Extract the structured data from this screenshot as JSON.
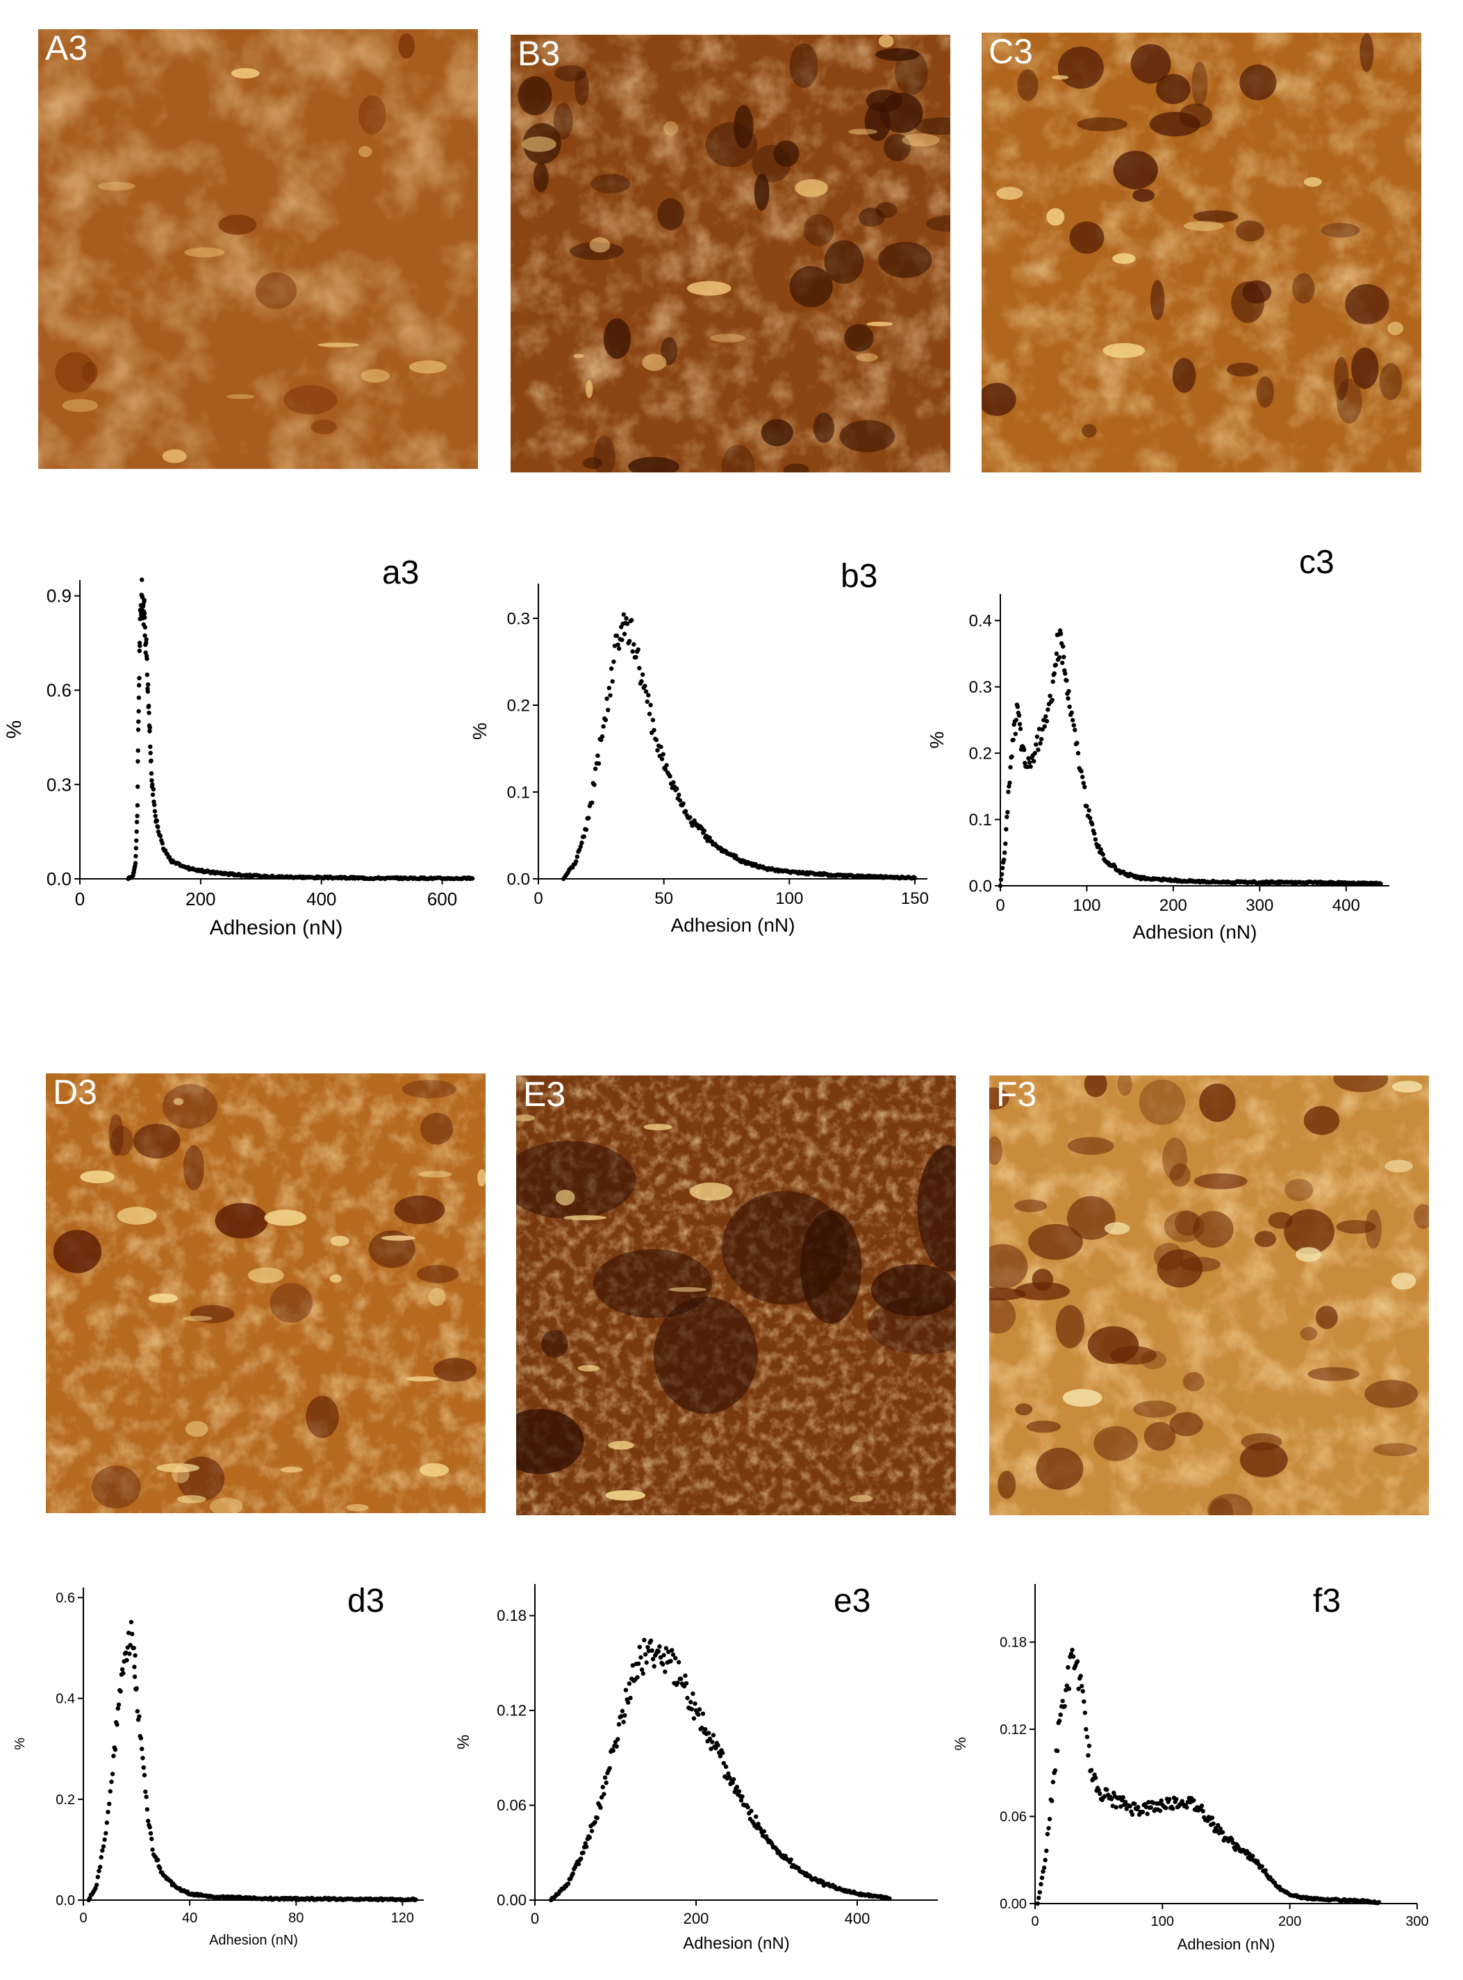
{
  "figure": {
    "afm_panels": [
      {
        "label": "A3",
        "palette": [
          "#7a2f06",
          "#a75d1f",
          "#f0c67a"
        ],
        "features": "layered streaks with bright ridges"
      },
      {
        "label": "B3",
        "palette": [
          "#3a1402",
          "#8b4512",
          "#f2c77c"
        ],
        "features": "granular with dark pits"
      },
      {
        "label": "C3",
        "palette": [
          "#4a1704",
          "#b0661d",
          "#f4d48a"
        ],
        "features": "dark holes on bright matrix"
      },
      {
        "label": "D3",
        "palette": [
          "#5a1a04",
          "#b56a20",
          "#f6d890"
        ],
        "features": "bright speckled fibrous texture"
      },
      {
        "label": "E3",
        "palette": [
          "#2c0c02",
          "#7a3a10",
          "#f7d98c"
        ],
        "features": "noisy speckle with bright bands"
      },
      {
        "label": "F3",
        "palette": [
          "#6a2606",
          "#c98b3c",
          "#f3e0a6"
        ],
        "features": "dark round islands on bright matrix"
      }
    ]
  },
  "chart_data": [
    {
      "panel": "a3",
      "type": "scatter",
      "xlabel": "Adhesion (nN)",
      "ylabel": "%",
      "xlim": [
        0,
        650
      ],
      "ylim": [
        0,
        0.95
      ],
      "xticks": [
        0,
        200,
        400,
        600
      ],
      "xtick_labels": [
        "0",
        "200",
        "400",
        "600"
      ],
      "yticks": [
        0,
        0.3,
        0.6,
        0.9
      ],
      "ytick_labels": [
        "0.0",
        "0.3",
        "0.6",
        "0.9"
      ],
      "points": [
        [
          80,
          0.0
        ],
        [
          88,
          0.01
        ],
        [
          92,
          0.05
        ],
        [
          95,
          0.2
        ],
        [
          97,
          0.5
        ],
        [
          99,
          0.75
        ],
        [
          101,
          0.87
        ],
        [
          103,
          0.9
        ],
        [
          106,
          0.85
        ],
        [
          108,
          0.8
        ],
        [
          111,
          0.7
        ],
        [
          114,
          0.55
        ],
        [
          117,
          0.4
        ],
        [
          120,
          0.3
        ],
        [
          125,
          0.2
        ],
        [
          130,
          0.15
        ],
        [
          140,
          0.09
        ],
        [
          150,
          0.06
        ],
        [
          170,
          0.04
        ],
        [
          200,
          0.025
        ],
        [
          250,
          0.015
        ],
        [
          300,
          0.008
        ],
        [
          400,
          0.004
        ],
        [
          500,
          0.002
        ],
        [
          650,
          0.001
        ]
      ]
    },
    {
      "panel": "b3",
      "type": "scatter",
      "xlabel": "Adhesion (nN)",
      "ylabel": "%",
      "xlim": [
        0,
        155
      ],
      "ylim": [
        0,
        0.34
      ],
      "xticks": [
        0,
        50,
        100,
        150
      ],
      "xtick_labels": [
        "0",
        "50",
        "100",
        "150"
      ],
      "yticks": [
        0,
        0.1,
        0.2,
        0.3
      ],
      "ytick_labels": [
        "0.0",
        "0.1",
        "0.2",
        "0.3"
      ],
      "points": [
        [
          10,
          0.0
        ],
        [
          15,
          0.02
        ],
        [
          20,
          0.07
        ],
        [
          25,
          0.16
        ],
        [
          30,
          0.25
        ],
        [
          33,
          0.29
        ],
        [
          35,
          0.3
        ],
        [
          38,
          0.27
        ],
        [
          42,
          0.22
        ],
        [
          47,
          0.16
        ],
        [
          52,
          0.12
        ],
        [
          60,
          0.07
        ],
        [
          70,
          0.04
        ],
        [
          80,
          0.022
        ],
        [
          90,
          0.012
        ],
        [
          100,
          0.008
        ],
        [
          120,
          0.004
        ],
        [
          140,
          0.002
        ],
        [
          150,
          0.001
        ]
      ]
    },
    {
      "panel": "c3",
      "type": "scatter",
      "xlabel": "Adhesion (nN)",
      "ylabel": "%",
      "xlim": [
        0,
        450
      ],
      "ylim": [
        0,
        0.44
      ],
      "xticks": [
        0,
        100,
        200,
        300,
        400
      ],
      "xtick_labels": [
        "0",
        "100",
        "200",
        "300",
        "400"
      ],
      "yticks": [
        0,
        0.1,
        0.2,
        0.3,
        0.4
      ],
      "ytick_labels": [
        "0.0",
        "0.1",
        "0.2",
        "0.3",
        "0.4"
      ],
      "points": [
        [
          0,
          0.0
        ],
        [
          5,
          0.05
        ],
        [
          10,
          0.15
        ],
        [
          15,
          0.22
        ],
        [
          20,
          0.27
        ],
        [
          25,
          0.21
        ],
        [
          30,
          0.18
        ],
        [
          40,
          0.2
        ],
        [
          50,
          0.25
        ],
        [
          60,
          0.28
        ],
        [
          65,
          0.35
        ],
        [
          70,
          0.38
        ],
        [
          75,
          0.32
        ],
        [
          80,
          0.27
        ],
        [
          90,
          0.2
        ],
        [
          100,
          0.12
        ],
        [
          110,
          0.07
        ],
        [
          120,
          0.04
        ],
        [
          140,
          0.02
        ],
        [
          160,
          0.012
        ],
        [
          200,
          0.008
        ],
        [
          250,
          0.006
        ],
        [
          300,
          0.005
        ],
        [
          350,
          0.005
        ],
        [
          400,
          0.004
        ],
        [
          440,
          0.003
        ]
      ]
    },
    {
      "panel": "d3",
      "type": "scatter",
      "xlabel": "Adhesion (nN)",
      "ylabel": "%",
      "xlim": [
        0,
        128
      ],
      "ylim": [
        0,
        0.62
      ],
      "xticks": [
        0,
        40,
        80,
        120
      ],
      "xtick_labels": [
        "0",
        "40",
        "80",
        "120"
      ],
      "yticks": [
        0,
        0.2,
        0.4,
        0.6
      ],
      "ytick_labels": [
        "0.0",
        "0.2",
        "0.4",
        "0.6"
      ],
      "points": [
        [
          2,
          0.0
        ],
        [
          5,
          0.03
        ],
        [
          8,
          0.12
        ],
        [
          11,
          0.25
        ],
        [
          13,
          0.38
        ],
        [
          15,
          0.45
        ],
        [
          17,
          0.53
        ],
        [
          19,
          0.5
        ],
        [
          20,
          0.42
        ],
        [
          22,
          0.3
        ],
        [
          24,
          0.18
        ],
        [
          26,
          0.1
        ],
        [
          30,
          0.05
        ],
        [
          35,
          0.025
        ],
        [
          40,
          0.012
        ],
        [
          50,
          0.006
        ],
        [
          70,
          0.003
        ],
        [
          100,
          0.002
        ],
        [
          125,
          0.001
        ]
      ]
    },
    {
      "panel": "e3",
      "type": "scatter",
      "xlabel": "Adhesion (nN)",
      "ylabel": "%",
      "xlim": [
        0,
        500
      ],
      "ylim": [
        0,
        0.2
      ],
      "xticks": [
        0,
        200,
        400
      ],
      "xtick_labels": [
        "0",
        "200",
        "400"
      ],
      "yticks": [
        0,
        0.06,
        0.12,
        0.18
      ],
      "ytick_labels": [
        "0.00",
        "0.06",
        "0.12",
        "0.18"
      ],
      "points": [
        [
          20,
          0.0
        ],
        [
          40,
          0.01
        ],
        [
          60,
          0.03
        ],
        [
          80,
          0.06
        ],
        [
          100,
          0.1
        ],
        [
          120,
          0.14
        ],
        [
          140,
          0.16
        ],
        [
          160,
          0.155
        ],
        [
          180,
          0.14
        ],
        [
          200,
          0.12
        ],
        [
          220,
          0.1
        ],
        [
          240,
          0.08
        ],
        [
          260,
          0.06
        ],
        [
          280,
          0.045
        ],
        [
          300,
          0.032
        ],
        [
          330,
          0.018
        ],
        [
          360,
          0.01
        ],
        [
          400,
          0.004
        ],
        [
          440,
          0.001
        ]
      ]
    },
    {
      "panel": "f3",
      "type": "scatter",
      "xlabel": "Adhesion (nN)",
      "ylabel": "%",
      "xlim": [
        0,
        300
      ],
      "ylim": [
        0,
        0.22
      ],
      "xticks": [
        0,
        100,
        200,
        300
      ],
      "xtick_labels": [
        "0",
        "100",
        "200",
        "300"
      ],
      "yticks": [
        0,
        0.06,
        0.12,
        0.18
      ],
      "ytick_labels": [
        "0.00",
        "0.06",
        "0.12",
        "0.18"
      ],
      "points": [
        [
          2,
          0.0
        ],
        [
          8,
          0.03
        ],
        [
          15,
          0.09
        ],
        [
          20,
          0.13
        ],
        [
          25,
          0.15
        ],
        [
          30,
          0.17
        ],
        [
          35,
          0.155
        ],
        [
          40,
          0.12
        ],
        [
          45,
          0.085
        ],
        [
          50,
          0.078
        ],
        [
          60,
          0.072
        ],
        [
          70,
          0.068
        ],
        [
          80,
          0.065
        ],
        [
          90,
          0.066
        ],
        [
          100,
          0.068
        ],
        [
          110,
          0.07
        ],
        [
          120,
          0.07
        ],
        [
          130,
          0.065
        ],
        [
          140,
          0.055
        ],
        [
          150,
          0.045
        ],
        [
          160,
          0.038
        ],
        [
          170,
          0.032
        ],
        [
          180,
          0.022
        ],
        [
          190,
          0.012
        ],
        [
          200,
          0.006
        ],
        [
          220,
          0.003
        ],
        [
          250,
          0.002
        ],
        [
          270,
          0.001
        ]
      ]
    }
  ]
}
